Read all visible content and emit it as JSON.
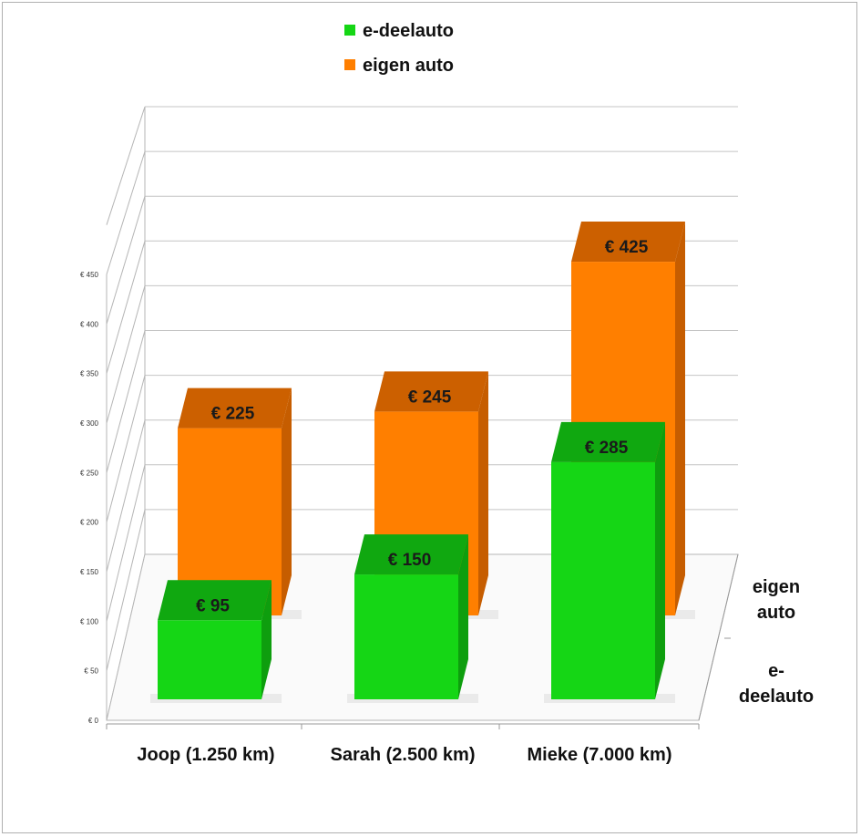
{
  "chart_data": {
    "type": "bar",
    "subtype": "3d-clustered-column",
    "categories": [
      "Joop (1.250 km)",
      "Sarah (2.500 km)",
      "Mieke (7.000 km)"
    ],
    "series": [
      {
        "name": "e-deelauto",
        "color": "#15d615",
        "top_color": "#10a810",
        "side_color": "#0e9e0e",
        "values": [
          95,
          150,
          285
        ],
        "labels": [
          "€ 95",
          "€ 150",
          "€ 285"
        ]
      },
      {
        "name": "eigen auto",
        "color": "#ff7f00",
        "top_color": "#cc6000",
        "side_color": "#c65d00",
        "values": [
          225,
          245,
          425
        ],
        "labels": [
          "€ 225",
          "€ 245",
          "€ 425"
        ]
      }
    ],
    "depth_labels": [
      "eigen auto",
      "e-deelauto"
    ],
    "y_ticks": [
      "€ 0",
      "€ 50",
      "€ 100",
      "€ 150",
      "€ 200",
      "€ 250",
      "€ 300",
      "€ 350",
      "€ 400",
      "€ 450"
    ],
    "ylim": [
      0,
      450
    ],
    "title": "",
    "xlabel": "",
    "ylabel": "",
    "legend_position": "top-center",
    "grid": true
  }
}
